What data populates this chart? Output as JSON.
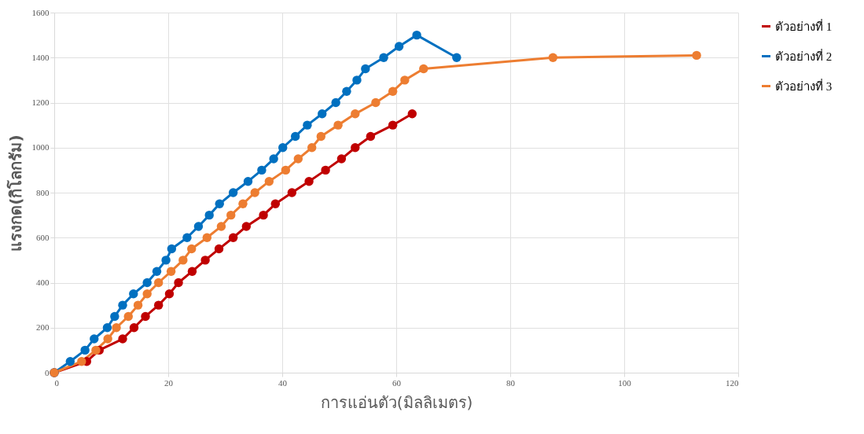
{
  "chart_data": {
    "type": "line",
    "xlabel": "การแอ่นตัว(มิลลิเมตร)",
    "ylabel": "แรงกด(กิโลกรัม)",
    "xlim": [
      0,
      120
    ],
    "xticks": [
      0,
      20,
      40,
      60,
      80,
      100,
      120
    ],
    "ylim": [
      0,
      1600
    ],
    "yticks": [
      0,
      200,
      400,
      600,
      800,
      1000,
      1200,
      1400,
      1600
    ],
    "grid": true,
    "legend": "right",
    "marker": "circle",
    "line_style": "solid",
    "series": [
      {
        "name": "ตัวอย่างที่ 1",
        "color": "#c00000",
        "x": [
          0,
          5.7,
          7.9,
          12,
          14,
          16,
          18.3,
          20.2,
          21.8,
          24.2,
          26.5,
          28.9,
          31.4,
          33.7,
          36.7,
          38.8,
          41.7,
          44.7,
          47.6,
          50.4,
          52.8,
          55.5,
          59.4,
          62.8
        ],
        "values": [
          0,
          50,
          100,
          150,
          200,
          250,
          300,
          350,
          400,
          450,
          500,
          550,
          600,
          650,
          700,
          750,
          800,
          850,
          900,
          950,
          1000,
          1050,
          1100,
          1150
        ]
      },
      {
        "name": "ตัวอย่างที่ 2",
        "color": "#0070c0",
        "x": [
          0,
          2.8,
          5.4,
          7,
          9.3,
          10.6,
          12,
          13.9,
          16.3,
          18,
          19.6,
          20.6,
          23.3,
          25.3,
          27.2,
          29,
          31.4,
          34,
          36.4,
          38.5,
          40.1,
          42.3,
          44.4,
          47,
          49.4,
          51.3,
          53.1,
          54.6,
          57.8,
          60.5,
          63.6,
          70.6
        ],
        "values": [
          0,
          50,
          100,
          150,
          200,
          250,
          300,
          350,
          400,
          450,
          500,
          550,
          600,
          650,
          700,
          750,
          800,
          850,
          900,
          950,
          1000,
          1050,
          1100,
          1150,
          1200,
          1250,
          1300,
          1350,
          1400,
          1450,
          1500,
          1400
        ]
      },
      {
        "name": "ตัวอย่างที่ 3",
        "color": "#ed7d31",
        "x": [
          0,
          4.8,
          7.3,
          9.4,
          10.9,
          13,
          14.7,
          16.3,
          18.3,
          20.5,
          22.6,
          24.1,
          26.8,
          29.3,
          31,
          33.1,
          35.2,
          37.7,
          40.6,
          42.8,
          45.2,
          46.8,
          49.8,
          52.8,
          56.4,
          59.4,
          61.5,
          64.8,
          87.5,
          112.7
        ],
        "values": [
          0,
          50,
          100,
          150,
          200,
          250,
          300,
          350,
          400,
          450,
          500,
          550,
          600,
          650,
          700,
          750,
          800,
          850,
          900,
          950,
          1000,
          1050,
          1100,
          1150,
          1200,
          1250,
          1300,
          1350,
          1400,
          1410
        ]
      }
    ]
  }
}
